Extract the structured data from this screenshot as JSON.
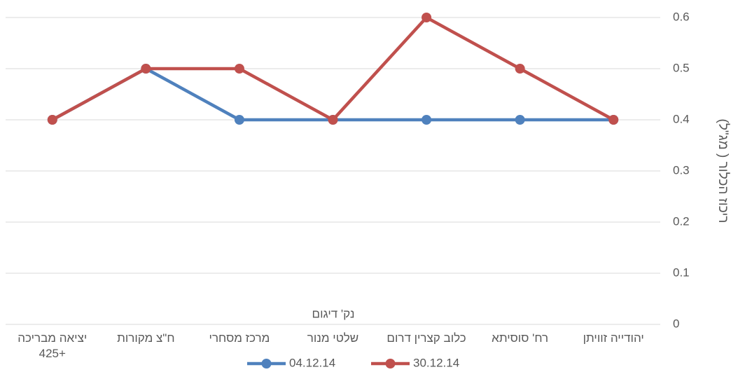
{
  "chart_data": {
    "type": "line",
    "categories": [
      "יהודייה זוויתן",
      "רח' סוסיתא",
      "כלוב קצרין דרום",
      "שלטי מנור",
      "מרכז מסחרי",
      "ח\"צ מקורות",
      "יציאה מבריכה +425"
    ],
    "series": [
      {
        "name": "04.12.14",
        "color": "#4f81bd",
        "values": [
          0.4,
          0.4,
          0.4,
          0.4,
          0.4,
          0.5,
          0.4
        ]
      },
      {
        "name": "30.12.14",
        "color": "#c0504d",
        "values": [
          0.4,
          0.5,
          0.6,
          0.4,
          0.5,
          0.5,
          0.4
        ]
      }
    ],
    "xlabel": "נק' דיגום",
    "ylabel": "ריכוז הכלור ( מג\"ל)",
    "ylim": [
      0,
      0.6
    ],
    "yticks": [
      0,
      0.1,
      0.2,
      0.3,
      0.4,
      0.5,
      0.6
    ],
    "grid": true,
    "legend": "bottom"
  }
}
